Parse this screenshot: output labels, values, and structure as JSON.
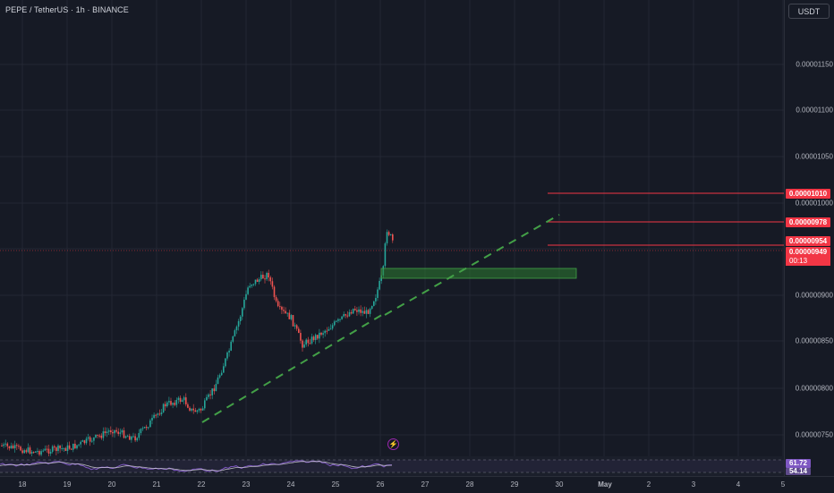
{
  "header": {
    "symbol_title": "PEPE / TetherUS · 1h · BINANCE",
    "currency_label": "USDT"
  },
  "price_axis": {
    "ticks": [
      "0.00001150",
      "0.00001100",
      "0.00001050",
      "0.00001000",
      "0.00000900",
      "0.00000850",
      "0.00000800",
      "0.00000750"
    ]
  },
  "price_tags": {
    "level_1": "0.00001010",
    "level_2": "0.00000978",
    "level_3": "0.00000954",
    "last_price": "0.00000949",
    "countdown": "00:13"
  },
  "indicator": {
    "rsi_value": "61.72",
    "rsi_ma_value": "54.14",
    "rsi_color": "#7e57c2"
  },
  "time_axis": {
    "ticks": [
      "18",
      "19",
      "20",
      "21",
      "22",
      "23",
      "24",
      "25",
      "26",
      "27",
      "28",
      "29",
      "30",
      "May",
      "2",
      "3",
      "4",
      "5"
    ]
  },
  "colors": {
    "up": "#26a69a",
    "down": "#ef5350",
    "tag_red": "#f23645",
    "trendline": "#43a047",
    "zone": "#2e7d32"
  },
  "icons": {
    "alert_button": "lightning-bolt-icon"
  }
}
